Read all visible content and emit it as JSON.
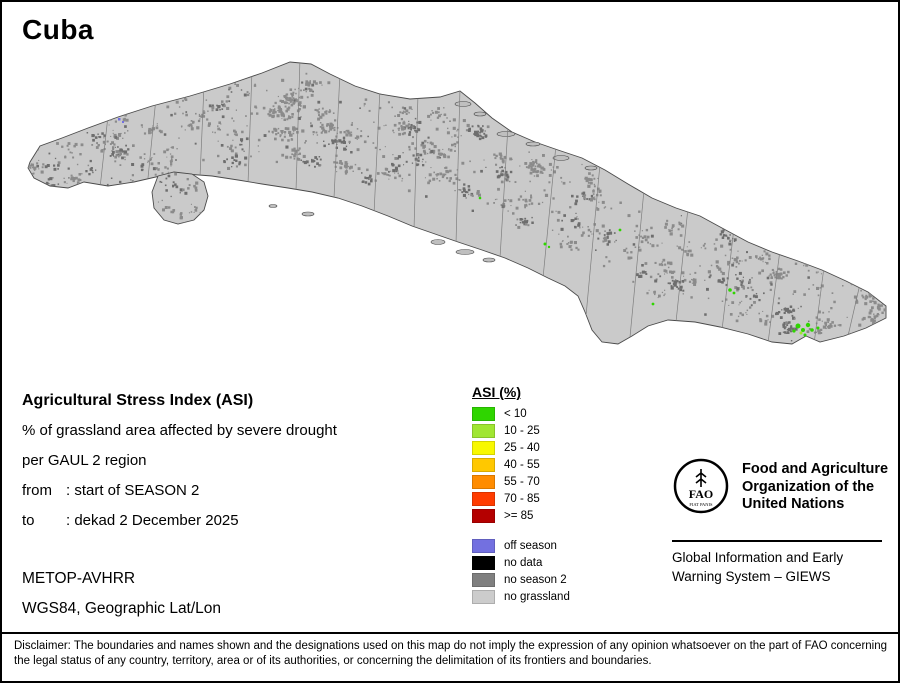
{
  "title": "Cuba",
  "info": {
    "heading": "Agricultural Stress Index (ASI)",
    "line1": "% of grassland area affected by severe drought",
    "line2": "per GAUL 2 region",
    "from_label": "from",
    "from_value": ": start of SEASON 2",
    "to_label": "to",
    "to_value": ": dekad 2 December 2025",
    "sensor": "METOP-AVHRR",
    "projection": "WGS84, Geographic Lat/Lon"
  },
  "legend": {
    "title": "ASI (%)",
    "classes": [
      {
        "label": "< 10",
        "color": "#2fd500"
      },
      {
        "label": "10 - 25",
        "color": "#a0e632"
      },
      {
        "label": "25 - 40",
        "color": "#f8f800"
      },
      {
        "label": "40 - 55",
        "color": "#ffc800"
      },
      {
        "label": "55 - 70",
        "color": "#ff8c00"
      },
      {
        "label": "70 - 85",
        "color": "#ff3c00"
      },
      {
        "label": ">= 85",
        "color": "#b40000"
      }
    ],
    "extra": [
      {
        "label": "off season",
        "color": "#7370e0"
      },
      {
        "label": "no data",
        "color": "#000000"
      },
      {
        "label": "no season 2",
        "color": "#7f7f7f"
      },
      {
        "label": "no grassland",
        "color": "#cccccc"
      }
    ]
  },
  "fao": {
    "logo_text": "FAO",
    "logo_motto": "FIAT PANIS",
    "org_name": "Food and Agriculture Organization of the United Nations",
    "giews": "Global Information and Early Warning System – GIEWS"
  },
  "map": {
    "colors": {
      "land": "#cacaca",
      "speckle": "#8b8b8b",
      "speckle_dark": "#6e6e6e",
      "coastline": "#4a4a4a",
      "boundary": "#7e7e7e",
      "asi_low_green": "#2fd500",
      "off_season_blue": "#7370e0"
    }
  },
  "disclaimer": "Disclaimer: The boundaries and names shown and the designations used on this map do not imply the expression of any opinion whatsoever on the part of FAO concerning the legal status of any country, territory, area or of its authorities, or concerning the delimitation of its frontiers and boundaries."
}
